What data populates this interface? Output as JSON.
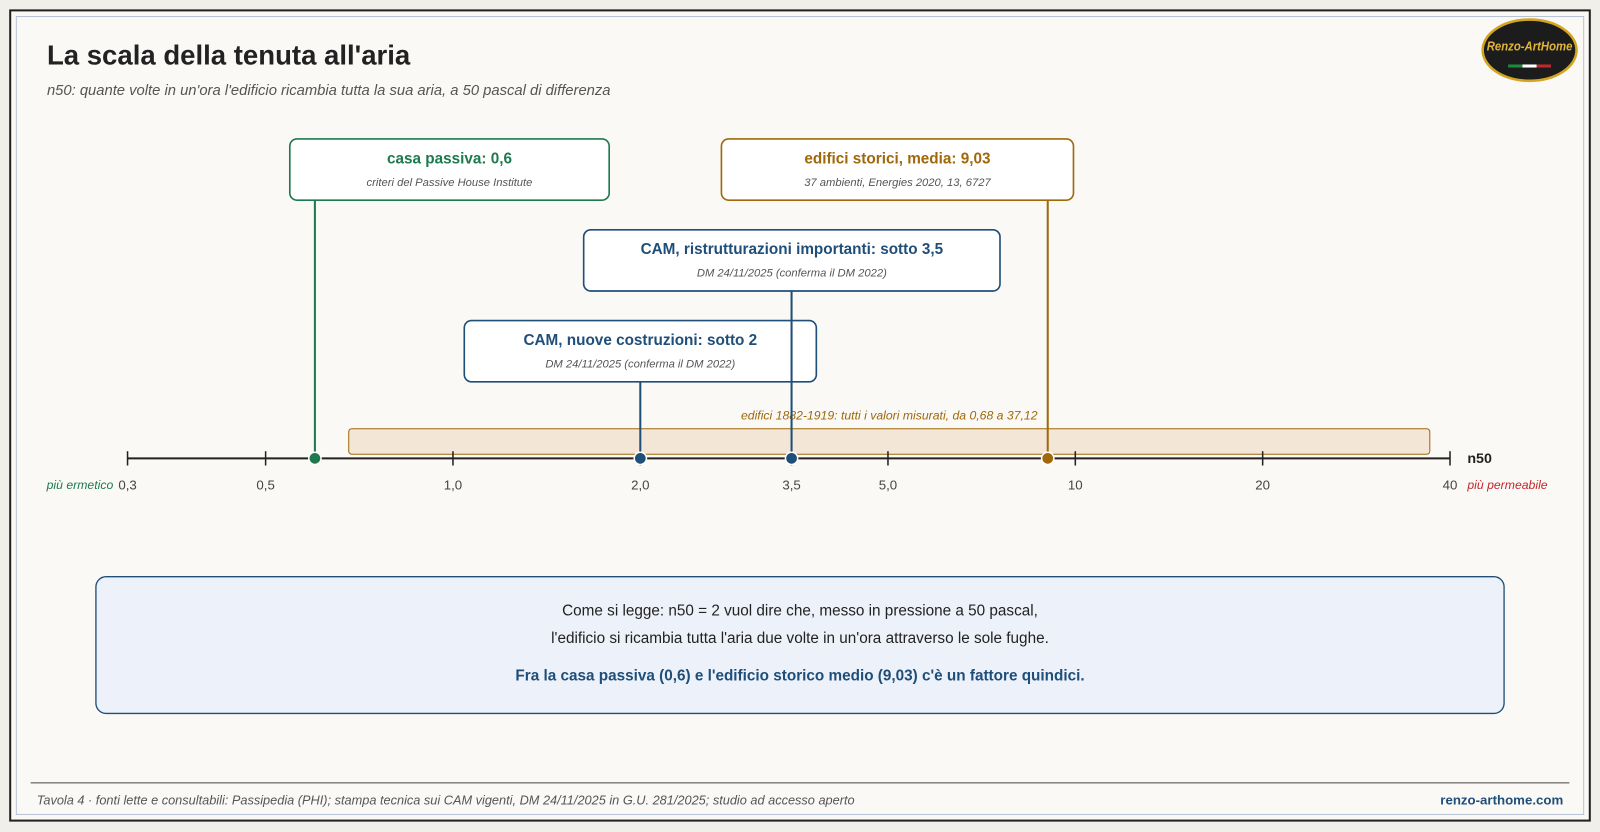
{
  "chart_data": {
    "type": "log-scale",
    "title": "La scala della tenuta all'aria",
    "subtitle": "n50: quante volte in un'ora l'edificio ricambia tutta la sua aria, a 50 pascal di differenza",
    "axis_label": "n50",
    "left_label": "più ermetico",
    "right_label": "più permeabile",
    "log_scale": true,
    "xlim": [
      0.3,
      40
    ],
    "xticks": [
      {
        "value": 0.3,
        "label": "0,3"
      },
      {
        "value": 0.5,
        "label": "0,5"
      },
      {
        "value": 1.0,
        "label": "1,0"
      },
      {
        "value": 2.0,
        "label": "2,0"
      },
      {
        "value": 3.5,
        "label": "3,5"
      },
      {
        "value": 5.0,
        "label": "5,0"
      },
      10,
      20,
      40
    ],
    "markers": [
      {
        "label": "casa passiva: 0,6",
        "note": "criteri del Passive House Institute",
        "value": 0.6,
        "color": "#1e7a4e"
      },
      {
        "label": "CAM, nuove costruzioni: sotto 2",
        "note": "DM 24/11/2025 (conferma il DM 2022)",
        "value": 2,
        "color": "#1f4e79"
      },
      {
        "label": "CAM, ristrutturazioni importanti: sotto 3,5",
        "note": "DM 24/11/2025 (conferma il DM 2022)",
        "value": 3.5,
        "color": "#1f4e79"
      },
      {
        "label": "edifici storici, media: 9,03",
        "note": "37 ambienti, Energies 2020, 13, 6727",
        "value": 9.03,
        "color": "#a0680a"
      }
    ],
    "range": {
      "label": "edifici 1882-1919: tutti i valori misurati, da 0,68 a 37,12",
      "from": 0.68,
      "to": 37.12,
      "color": "#a0680a"
    }
  },
  "info": {
    "lines": [
      "Come si legge: n50 = 2 vuol dire che, messo in pressione a 50 pascal,",
      "l'edificio si ricambia tutta l'aria due volte in un'ora attraverso le sole fughe."
    ],
    "highlight": "Fra la casa passiva (0,6) e l'edificio storico medio (9,03) c'è un fattore quindici."
  },
  "logo": "Renzo-ArtHome",
  "footer": {
    "source": "Tavola 4 · fonti lette e consultabili: Passipedia (PHI); stampa tecnica sui CAM vigenti, DM 24/11/2025 in G.U. 281/2025; studio ad accesso aperto",
    "site": "renzo-arthome.com"
  }
}
